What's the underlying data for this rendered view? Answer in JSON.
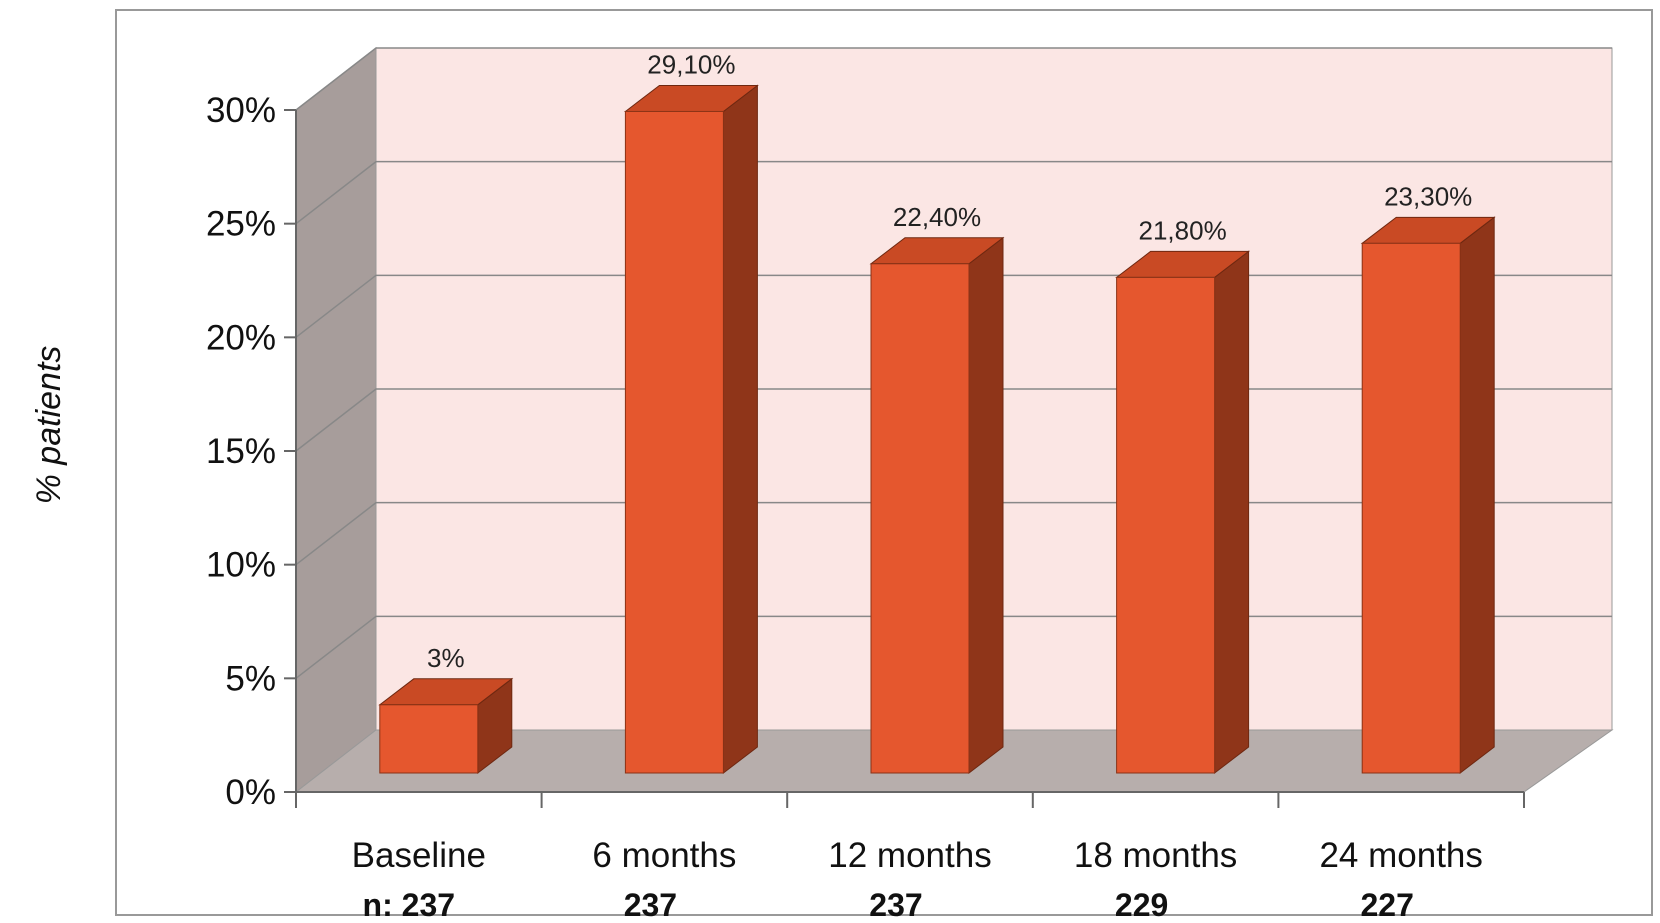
{
  "chart_data": {
    "type": "bar",
    "style": "3d-column",
    "categories": [
      "Baseline",
      "6 months",
      "12 months",
      "18 months",
      "24 months"
    ],
    "n_labels": [
      "n: 237",
      "237",
      "237",
      "229",
      "227"
    ],
    "values": [
      3.0,
      29.1,
      22.4,
      21.8,
      23.3
    ],
    "data_labels": [
      "3%",
      "29,10%",
      "22,40%",
      "21,80%",
      "23,30%"
    ],
    "ylabel": "% patients",
    "xlabel": "",
    "ylim": [
      0,
      30
    ],
    "ytick_values": [
      0,
      5,
      10,
      15,
      20,
      25,
      30
    ],
    "ytick_labels": [
      "0%",
      "5%",
      "10%",
      "15%",
      "20%",
      "25%",
      "30%"
    ],
    "grid": true,
    "legend": "none",
    "colors": {
      "bar_front": "#e5572e",
      "bar_top": "#c94a24",
      "bar_side": "#8f3519",
      "back_wall": "#fbe6e4",
      "side_wall": "#a79d9b",
      "floor": "#b7aeac",
      "gridline": "#888888",
      "frame": "#999999"
    }
  }
}
